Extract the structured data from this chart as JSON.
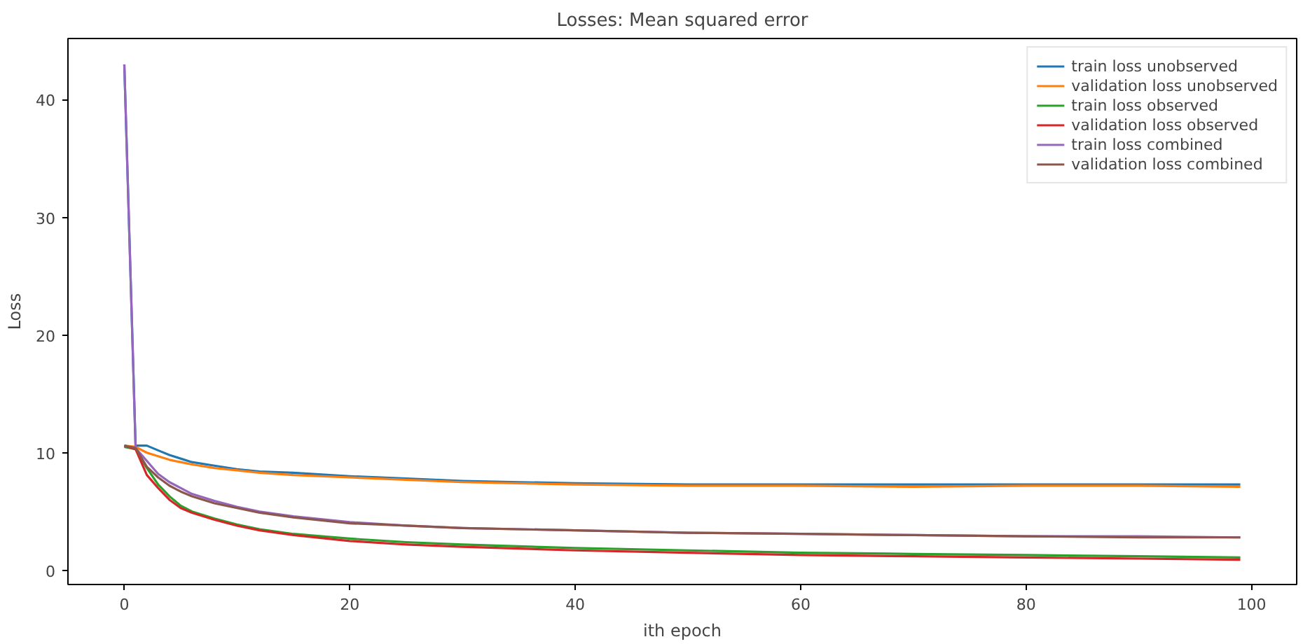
{
  "chart_data": {
    "type": "line",
    "title": "Losses: Mean squared error",
    "xlabel": "ith epoch",
    "ylabel": "Loss",
    "x": [
      0,
      1,
      2,
      3,
      4,
      5,
      6,
      8,
      10,
      12,
      15,
      20,
      25,
      30,
      40,
      50,
      60,
      70,
      80,
      90,
      99
    ],
    "series": [
      {
        "name": "train loss unobserved",
        "color": "#1f77b4",
        "values": [
          43,
          10.6,
          10.6,
          10.2,
          9.8,
          9.5,
          9.2,
          8.9,
          8.6,
          8.4,
          8.3,
          8.0,
          7.8,
          7.6,
          7.4,
          7.3,
          7.3,
          7.3,
          7.3,
          7.3,
          7.3
        ]
      },
      {
        "name": "validation loss unobserved",
        "color": "#ff7f0e",
        "values": [
          10.6,
          10.5,
          10.0,
          9.7,
          9.4,
          9.2,
          9.0,
          8.7,
          8.5,
          8.3,
          8.1,
          7.9,
          7.7,
          7.5,
          7.3,
          7.2,
          7.2,
          7.1,
          7.2,
          7.2,
          7.1
        ]
      },
      {
        "name": "train loss observed",
        "color": "#2ca02c",
        "values": [
          10.5,
          10.3,
          8.7,
          7.3,
          6.3,
          5.5,
          5.0,
          4.4,
          3.9,
          3.5,
          3.1,
          2.7,
          2.4,
          2.2,
          1.9,
          1.7,
          1.5,
          1.4,
          1.3,
          1.2,
          1.1
        ]
      },
      {
        "name": "validation loss observed",
        "color": "#d62728",
        "values": [
          10.6,
          10.3,
          8.1,
          7.0,
          6.0,
          5.3,
          4.9,
          4.3,
          3.8,
          3.4,
          3.0,
          2.5,
          2.2,
          2.0,
          1.7,
          1.5,
          1.3,
          1.2,
          1.1,
          1.0,
          0.9
        ]
      },
      {
        "name": "train loss combined",
        "color": "#9467bd",
        "values": [
          43,
          10.4,
          9.3,
          8.2,
          7.5,
          7.0,
          6.5,
          5.9,
          5.4,
          5.0,
          4.6,
          4.1,
          3.8,
          3.6,
          3.4,
          3.2,
          3.1,
          3.0,
          2.9,
          2.9,
          2.8
        ]
      },
      {
        "name": "validation loss combined",
        "color": "#8c564b",
        "values": [
          10.6,
          10.4,
          8.8,
          7.9,
          7.2,
          6.7,
          6.3,
          5.7,
          5.3,
          4.9,
          4.5,
          4.0,
          3.8,
          3.6,
          3.4,
          3.2,
          3.1,
          3.0,
          2.9,
          2.8,
          2.8
        ]
      }
    ],
    "xlim": [
      -5,
      104
    ],
    "ylim": [
      -1.2,
      45.2
    ],
    "xticks": [
      0,
      20,
      40,
      60,
      80,
      100
    ],
    "yticks": [
      0,
      10,
      20,
      30,
      40
    ],
    "grid": false,
    "legend": "top right",
    "marker": "none",
    "line_style": "solid"
  }
}
